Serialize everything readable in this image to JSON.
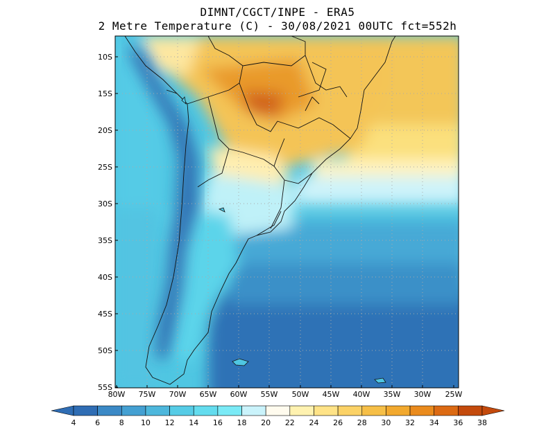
{
  "header": {
    "line1": "DIMNT/CGCT/INPE -  ERA5",
    "line2": "2 Metre Temperature (C) -  30/08/2021 00UTC fct=552h"
  },
  "map": {
    "lat_labels": [
      "10S",
      "15S",
      "20S",
      "25S",
      "30S",
      "35S",
      "40S",
      "45S",
      "50S",
      "55S"
    ],
    "lon_labels": [
      "80W",
      "75W",
      "70W",
      "65W",
      "60W",
      "55W",
      "50W",
      "45W",
      "40W",
      "35W",
      "30W",
      "25W"
    ],
    "ocean_color": "#2f7fc0",
    "land_color": "#4ec8e6"
  },
  "colorbar": {
    "labels": [
      "4",
      "6",
      "8",
      "10",
      "12",
      "14",
      "16",
      "18",
      "20",
      "22",
      "24",
      "26",
      "28",
      "30",
      "32",
      "34",
      "36",
      "38"
    ],
    "colors": [
      "#2f6db4",
      "#3b89c6",
      "#44a0d2",
      "#4db7dc",
      "#56cce6",
      "#63dcee",
      "#7aeaf6",
      "#caf3fb",
      "#fffbee",
      "#fff2b0",
      "#ffe387",
      "#fbd266",
      "#f6bf47",
      "#f2a92e",
      "#ea8b1d",
      "#dc6a13",
      "#c44a0c"
    ]
  }
}
